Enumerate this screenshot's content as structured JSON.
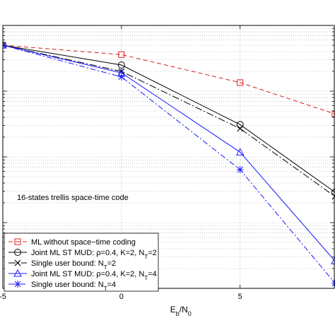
{
  "chart_data": {
    "type": "line",
    "xlabel": "E",
    "xlabel_sub": "b",
    "xlabel_mid": "/N",
    "xlabel_sub2": "0",
    "xlim": [
      -5,
      9
    ],
    "x_ticks": [
      -5,
      0,
      5
    ],
    "x_tick_labels": [
      "-5",
      "0",
      "5"
    ],
    "yscale": "log",
    "ylim": [
      0.0001,
      1
    ],
    "grid": true,
    "legend_position": "bottom-left",
    "annotation": "16-states trellis space-time code",
    "series": [
      {
        "name": "ML without space-time coding",
        "color": "#d62020",
        "dash": "6,4",
        "marker": "square",
        "x": [
          -5,
          0,
          5,
          9
        ],
        "y": [
          0.5,
          0.36,
          0.135,
          0.045
        ]
      },
      {
        "name": "Joint ML ST MUD: ρ=0.4, K=2, N_T=2",
        "color": "#000000",
        "dash": "",
        "marker": "circle",
        "x": [
          -5,
          0,
          5,
          9
        ],
        "y": [
          0.5,
          0.25,
          0.031,
          0.0029
        ]
      },
      {
        "name": "Single user bound: N_T=2",
        "color": "#000000",
        "dash": "10,3,2,3",
        "marker": "x",
        "x": [
          -5,
          0,
          5,
          9
        ],
        "y": [
          0.5,
          0.2,
          0.027,
          0.0025
        ]
      },
      {
        "name": "Joint ML ST MUD: ρ=0.4, K=2, N_T=4",
        "color": "#1a1aff",
        "dash": "",
        "marker": "triangle",
        "x": [
          -5,
          0,
          5,
          9
        ],
        "y": [
          0.5,
          0.19,
          0.0118,
          0.00026
        ]
      },
      {
        "name": "Single user bound: N_T=4",
        "color": "#1a1aff",
        "dash": "8,3,2,3",
        "marker": "star",
        "x": [
          -5,
          0,
          5,
          9
        ],
        "y": [
          0.5,
          0.165,
          0.0064,
          0.00012
        ]
      }
    ]
  },
  "legend": {
    "items": [
      {
        "pre": "ML without space−time coding",
        "sub": "",
        "post": ""
      },
      {
        "pre": "Joint ML ST MUD: ρ=0.4, K=2, N",
        "sub": "T",
        "post": "=2"
      },
      {
        "pre": "Single user bound: N",
        "sub": "T",
        "post": "=2"
      },
      {
        "pre": "Joint ML ST MUD: ρ=0.4, K=2, N",
        "sub": "T",
        "post": "=4"
      },
      {
        "pre": "Single user bound: N",
        "sub": "T",
        "post": "=4"
      }
    ]
  }
}
